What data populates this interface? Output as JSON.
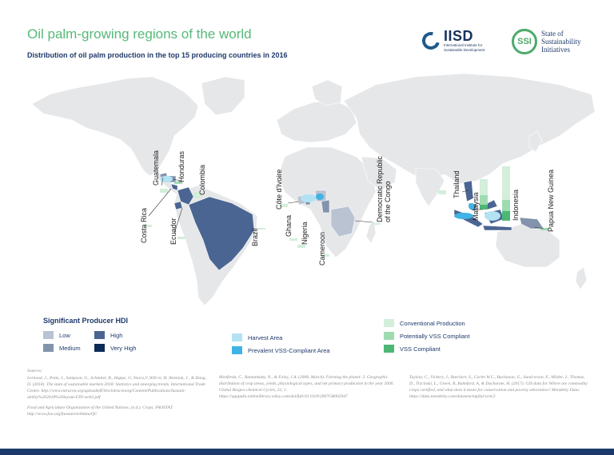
{
  "title": "Oil palm-growing regions of the world",
  "subtitle": "Distribution of oil palm production in the top 15 producing countries in 2016",
  "logos": {
    "iisd": {
      "name": "IISD",
      "tagline": [
        "International Institute for",
        "Sustainable Development"
      ]
    },
    "ssi": {
      "mark": "SSI",
      "lines": [
        "State of",
        "Sustainability",
        "Initiatives"
      ]
    }
  },
  "countries": [
    {
      "label": "Guatemala"
    },
    {
      "label": "Honduras"
    },
    {
      "label": "Colombia"
    },
    {
      "label": "Costa Rica"
    },
    {
      "label": "Ecuador"
    },
    {
      "label": "Brazil"
    },
    {
      "label": "Côte d'Ivoire"
    },
    {
      "label": "Ghana"
    },
    {
      "label": "Nigeria"
    },
    {
      "label": "Cameroon"
    },
    {
      "label": "Democratic Republic\nof the Congo"
    },
    {
      "label": "Thailand"
    },
    {
      "label": "Malaysia"
    },
    {
      "label": "Indonesia"
    },
    {
      "label": "Papua New Guinea"
    }
  ],
  "legend": {
    "hdi_title": "Significant Producer HDI",
    "hdi_items": [
      {
        "label": "Low",
        "color": "#b9c3d2"
      },
      {
        "label": "High",
        "color": "#4a6592"
      },
      {
        "label": "Medium",
        "color": "#8393ad"
      },
      {
        "label": "Very High",
        "color": "#0e2a57"
      }
    ],
    "area_items": [
      {
        "label": "Harvest Area",
        "color": "#b3e3f3"
      },
      {
        "label": "Prevalent VSS-Compliant Area",
        "color": "#3fb3e3"
      }
    ],
    "production_items": [
      {
        "label": "Conventional Production",
        "color": "#d3eedb"
      },
      {
        "label": "Potentially VSS Compliant",
        "color": "#9fdbb1"
      },
      {
        "label": "VSS Compliant",
        "color": "#4cb774"
      }
    ]
  },
  "sources": {
    "heading": "Sources:",
    "columns": [
      [
        "Lernoud, J., Potts, J., Sampson, G., Schlatter, B., Huppe, G.,Voora,V.,Will-er, H.,Wozniak, J., & Dang, D. (2018). The state of sustainable markets 2018: Statistics and emerging trends. International Trade Centre. http://www.intracen.org/uploadedFiles/intracenorg/Content/Publications/Sustain-ability%202018%20layout-FIN-web2.pdf",
        "Food and Agriculture Organization of the United Nations. (n.d.). Crops. FAOSTAT. http://www.fao.org/faostat/en/#data/QC"
      ],
      [
        "Monfreda, C., Ramankutty, N., & Foley, J.A. (2008, March). Farming the planet: 2. Geographic distribution of crop areas, yields, physiological types, and net primary production in the year 2000. Global Biogeo-chemical Cycles, 22, 1. https://agupubs.onlinelibrary.wiley.com/doi/full/10.1029/2007GB002947"
      ],
      [
        "Tayleur, C., Vickery, J., Butchart, S., Corlet W.C., Buchanan, G., Sand-erson, F., Milder, J., Thomas, D., Trzcinski, L., Green, R, Balmford, A, & Ducharme, H. (2017). GIS data for:Where are commodity crops certified, and what does it mean for conservation and poverty alleviation? Mendeley Data. https://data.mendeley.com/datasets/mpjbyrxcm/2"
      ]
    ]
  },
  "colors": {
    "land": "#e6e7e9",
    "title_green": "#56b978",
    "navy": "#1f3a6b"
  }
}
